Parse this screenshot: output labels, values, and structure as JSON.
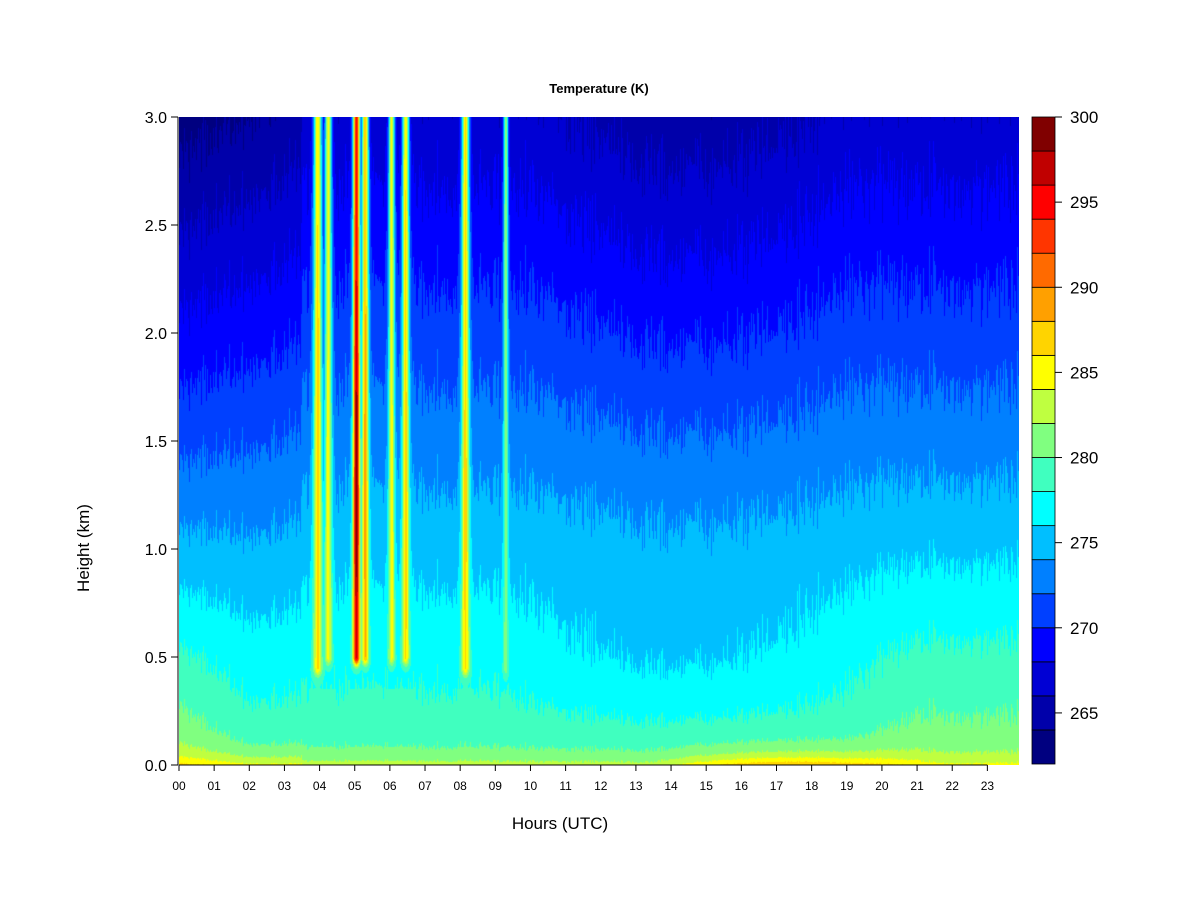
{
  "chart_data": {
    "type": "heatmap",
    "title": "Temperature (K)",
    "xlabel": "Hours (UTC)",
    "ylabel": "Height (km)",
    "xlim": [
      0,
      23.9
    ],
    "ylim": [
      0,
      3.0
    ],
    "x_ticks": [
      "00",
      "01",
      "02",
      "03",
      "04",
      "05",
      "06",
      "07",
      "08",
      "09",
      "10",
      "11",
      "12",
      "13",
      "14",
      "15",
      "16",
      "17",
      "18",
      "19",
      "20",
      "21",
      "22",
      "23"
    ],
    "y_ticks": [
      "0.0",
      "0.5",
      "1.0",
      "1.5",
      "2.0",
      "2.5",
      "3.0"
    ],
    "colorbar": {
      "min": 262,
      "max": 300,
      "step": 2,
      "tick_labels": [
        "265",
        "270",
        "275",
        "280",
        "285",
        "290",
        "295",
        "300"
      ],
      "levels": [
        {
          "upper": 264,
          "color": "#000080"
        },
        {
          "upper": 266,
          "color": "#0000aa"
        },
        {
          "upper": 268,
          "color": "#0000d4"
        },
        {
          "upper": 270,
          "color": "#0000ff"
        },
        {
          "upper": 272,
          "color": "#0040ff"
        },
        {
          "upper": 274,
          "color": "#0080ff"
        },
        {
          "upper": 276,
          "color": "#00bfff"
        },
        {
          "upper": 278,
          "color": "#00ffff"
        },
        {
          "upper": 280,
          "color": "#40ffbf"
        },
        {
          "upper": 282,
          "color": "#80ff80"
        },
        {
          "upper": 284,
          "color": "#bfff40"
        },
        {
          "upper": 286,
          "color": "#ffff00"
        },
        {
          "upper": 288,
          "color": "#ffd400"
        },
        {
          "upper": 290,
          "color": "#ffa000"
        },
        {
          "upper": 292,
          "color": "#ff6a00"
        },
        {
          "upper": 294,
          "color": "#ff3500"
        },
        {
          "upper": 296,
          "color": "#ff0000"
        },
        {
          "upper": 298,
          "color": "#c00000"
        },
        {
          "upper": 300,
          "color": "#800000"
        }
      ]
    },
    "warm_plumes": [
      {
        "hour": 3.95,
        "width": 0.12,
        "peak_K": 287,
        "base_km": 0.45
      },
      {
        "hour": 4.25,
        "width": 0.1,
        "peak_K": 285,
        "base_km": 0.5
      },
      {
        "hour": 5.05,
        "width": 0.1,
        "peak_K": 299,
        "base_km": 0.5
      },
      {
        "hour": 5.3,
        "width": 0.1,
        "peak_K": 289,
        "base_km": 0.5
      },
      {
        "hour": 6.05,
        "width": 0.09,
        "peak_K": 285,
        "base_km": 0.5
      },
      {
        "hour": 6.45,
        "width": 0.1,
        "peak_K": 287,
        "base_km": 0.5
      },
      {
        "hour": 8.15,
        "width": 0.11,
        "peak_K": 287,
        "base_km": 0.45
      },
      {
        "hour": 9.3,
        "width": 0.07,
        "peak_K": 281,
        "base_km": 0.45
      }
    ]
  }
}
